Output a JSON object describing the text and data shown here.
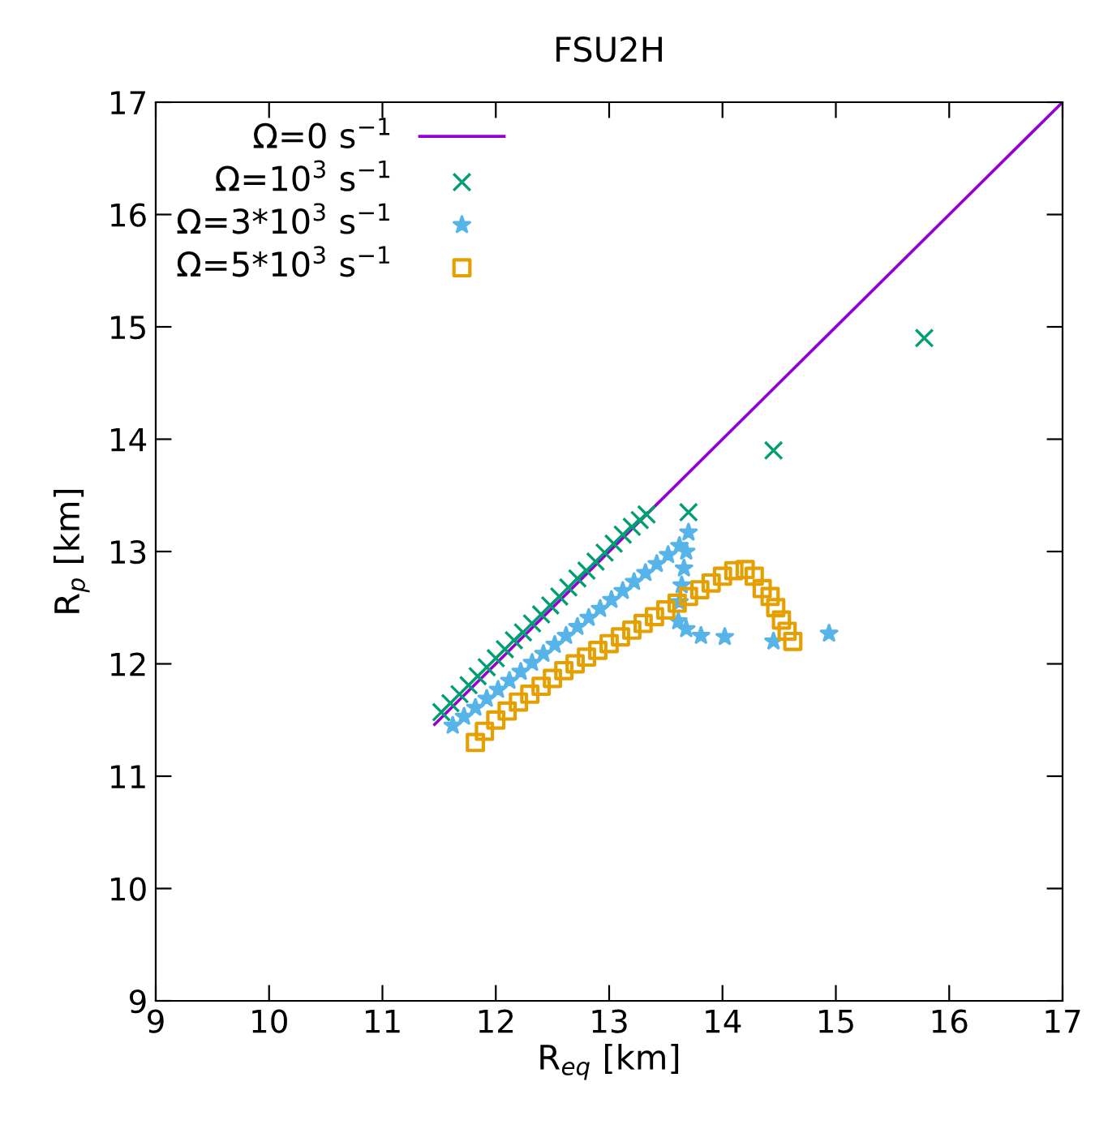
{
  "chart_data": {
    "type": "scatter",
    "title": "FSU2H",
    "xlabel": "R$_{eq}$ [km]",
    "ylabel": "R$_{p}$ [km]",
    "xlim": [
      9,
      17
    ],
    "ylim": [
      9,
      17
    ],
    "xticks": [
      9,
      10,
      11,
      12,
      13,
      14,
      15,
      16,
      17
    ],
    "yticks": [
      9,
      10,
      11,
      12,
      13,
      14,
      15,
      16,
      17
    ],
    "grid": false,
    "legend": "top left",
    "series": [
      {
        "name": "Ω=0 s$^{−1}$",
        "type": "line",
        "color": "#9400d3",
        "marker": "none",
        "x": [
          11.46,
          17
        ],
        "values": [
          11.46,
          17
        ]
      },
      {
        "name": "Ω=10$^{3}$ s$^{−1}$",
        "color": "#009e73",
        "marker": "cross",
        "x": [
          11.52,
          11.6,
          11.68,
          11.76,
          11.84,
          11.92,
          12.0,
          12.08,
          12.16,
          12.24,
          12.32,
          12.4,
          12.48,
          12.56,
          12.64,
          12.72,
          12.8,
          12.88,
          12.96,
          13.04,
          13.12,
          13.2,
          13.27,
          13.33,
          13.7,
          14.45,
          15.78
        ],
        "values": [
          11.57,
          11.65,
          11.73,
          11.81,
          11.89,
          11.97,
          12.05,
          12.13,
          12.21,
          12.28,
          12.36,
          12.44,
          12.52,
          12.6,
          12.68,
          12.76,
          12.83,
          12.91,
          12.99,
          13.07,
          13.15,
          13.22,
          13.28,
          13.33,
          13.35,
          13.9,
          14.9
        ]
      },
      {
        "name": "Ω=3*10$^{3}$ s$^{−1}$",
        "color": "#56b4e9",
        "marker": "star",
        "x": [
          11.62,
          11.72,
          11.82,
          11.92,
          12.02,
          12.12,
          12.22,
          12.32,
          12.42,
          12.52,
          12.62,
          12.72,
          12.82,
          12.92,
          13.02,
          13.12,
          13.22,
          13.32,
          13.42,
          13.52,
          13.62,
          13.7,
          13.68,
          13.66,
          13.64,
          13.62,
          13.61,
          13.68,
          13.81,
          14.02,
          14.45,
          14.94
        ],
        "values": [
          11.45,
          11.53,
          11.61,
          11.69,
          11.77,
          11.85,
          11.93,
          12.01,
          12.09,
          12.17,
          12.25,
          12.33,
          12.41,
          12.49,
          12.57,
          12.65,
          12.73,
          12.81,
          12.89,
          12.97,
          13.05,
          13.17,
          13.0,
          12.85,
          12.7,
          12.55,
          12.38,
          12.31,
          12.25,
          12.24,
          12.2,
          12.27
        ]
      },
      {
        "name": "Ω=5*10$^{3}$ s$^{−1}$",
        "color": "#e69f00",
        "marker": "square",
        "x": [
          11.82,
          11.9,
          12.0,
          12.1,
          12.2,
          12.3,
          12.4,
          12.5,
          12.6,
          12.7,
          12.8,
          12.9,
          13.0,
          13.1,
          13.2,
          13.3,
          13.4,
          13.5,
          13.6,
          13.7,
          13.8,
          13.9,
          14.0,
          14.1,
          14.2,
          14.28,
          14.35,
          14.42,
          14.47,
          14.52,
          14.57,
          14.62
        ],
        "values": [
          11.3,
          11.4,
          11.5,
          11.58,
          11.66,
          11.73,
          11.8,
          11.87,
          11.94,
          12.0,
          12.06,
          12.12,
          12.18,
          12.24,
          12.3,
          12.36,
          12.42,
          12.48,
          12.54,
          12.6,
          12.66,
          12.72,
          12.78,
          12.83,
          12.84,
          12.78,
          12.67,
          12.6,
          12.5,
          12.39,
          12.29,
          12.2
        ]
      }
    ]
  }
}
